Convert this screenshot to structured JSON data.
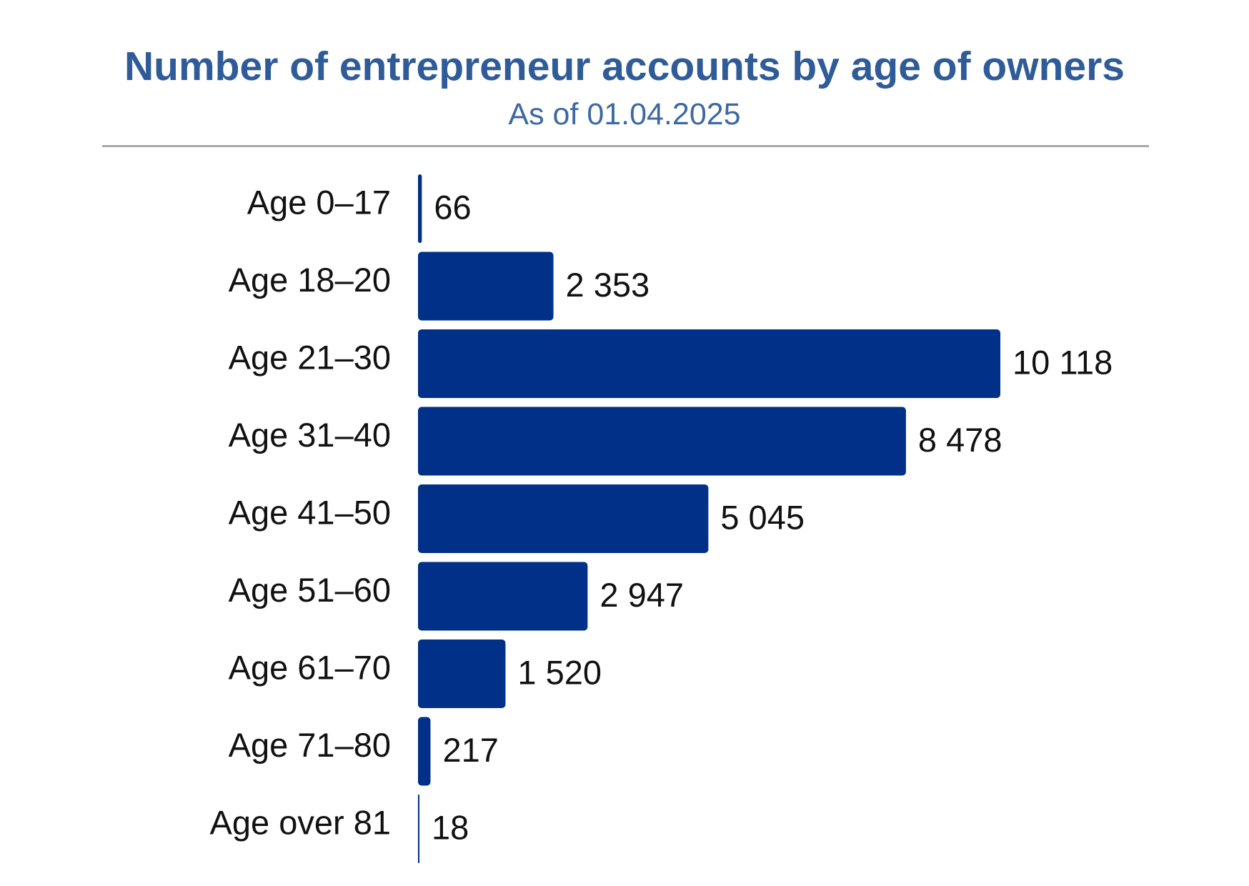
{
  "chart_data": {
    "type": "bar",
    "orientation": "horizontal",
    "title": "Number of entrepreneur accounts by age of owners",
    "subtitle": "As of 01.04.2025",
    "categories": [
      "Age 0–17",
      "Age 18–20",
      "Age 21–30",
      "Age 31–40",
      "Age 41–50",
      "Age 51–60",
      "Age 61–70",
      "Age 71–80",
      "Age over 81"
    ],
    "values": [
      66,
      2353,
      10118,
      8478,
      5045,
      2947,
      1520,
      217,
      18
    ],
    "value_labels": [
      "66",
      "2 353",
      "10 118",
      "8 478",
      "5 045",
      "2 947",
      "1 520",
      "217",
      "18"
    ],
    "bar_color": "#003087",
    "title_color": "#2f5c98",
    "xlabel": "",
    "ylabel": "",
    "grid": false,
    "legend": "none"
  }
}
